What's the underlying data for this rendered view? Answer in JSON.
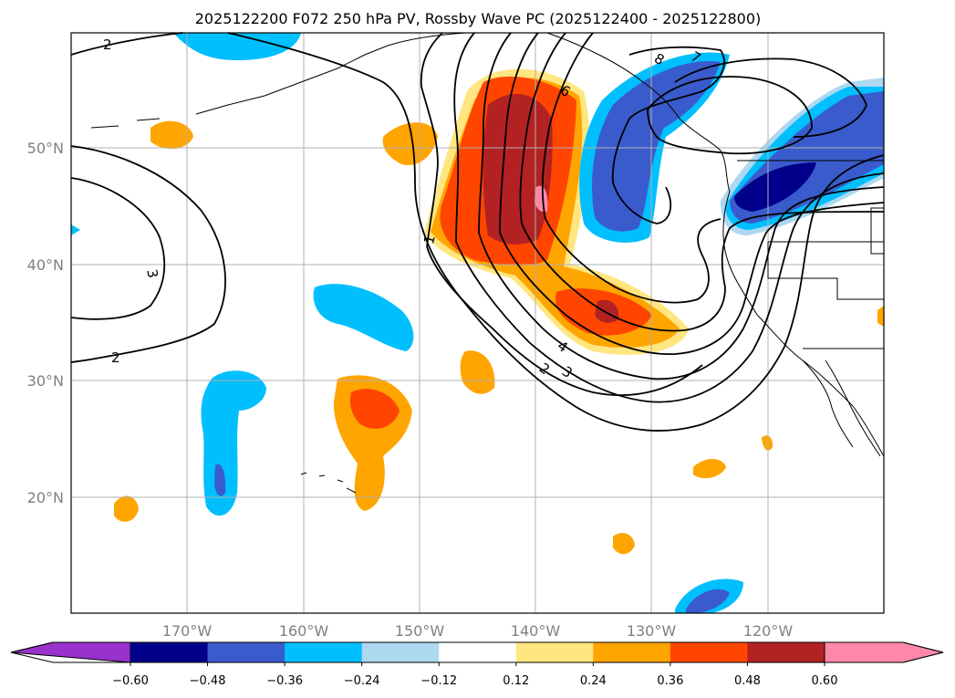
{
  "title": "2025122200 F072 250 hPa PV, Rossby Wave PC (2025122400 - 2025122800)",
  "map": {
    "lon_range": [
      -180,
      -110
    ],
    "lat_range": [
      10,
      60
    ],
    "lat_ticks": [
      {
        "value": 50,
        "label": "50°N"
      },
      {
        "value": 40,
        "label": "40°N"
      },
      {
        "value": 30,
        "label": "30°N"
      },
      {
        "value": 20,
        "label": "20°N"
      }
    ],
    "lon_ticks": [
      {
        "value": -170,
        "label": "170°W"
      },
      {
        "value": -160,
        "label": "160°W"
      },
      {
        "value": -150,
        "label": "150°W"
      },
      {
        "value": -140,
        "label": "140°W"
      },
      {
        "value": -130,
        "label": "130°W"
      },
      {
        "value": -120,
        "label": "120°W"
      }
    ],
    "contour_labels": [
      "2",
      "2",
      "3",
      "1",
      "2",
      "3",
      "4",
      "6",
      "7",
      "8"
    ]
  },
  "colorbar": {
    "under_color": "#9932cc",
    "over_color": "#ff88aa",
    "colors": [
      "#00008b",
      "#3a5bcc",
      "#00bfff",
      "#add8f0",
      "#ffffff",
      "#ffe680",
      "#ffa500",
      "#ff4500",
      "#b22222",
      "#ff88aa"
    ],
    "labels": [
      "−0.60",
      "−0.48",
      "−0.36",
      "−0.24",
      "−0.12",
      "0.12",
      "0.24",
      "0.36",
      "0.48",
      "0.60"
    ]
  }
}
